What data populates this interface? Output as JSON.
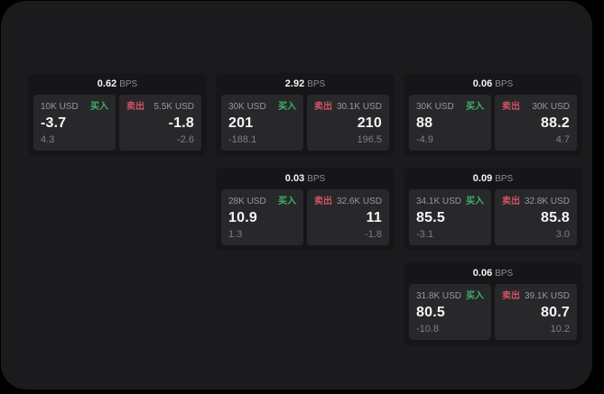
{
  "labels": {
    "bps_unit": "BPS",
    "buy": "买入",
    "sell": "卖出"
  },
  "colors": {
    "background": "#000000",
    "surface": "#1b1b1d",
    "card": "#161618",
    "panel": "#28282a",
    "value_text": "#f5f5f7",
    "muted_text": "#8e8e93",
    "buy_accent": "#41b269",
    "sell_accent": "#cf5466"
  },
  "cards": [
    {
      "bps": "0.62",
      "buy": {
        "size": "10K USD",
        "value": "-3.7",
        "sub": "4.3"
      },
      "sell": {
        "size": "5.5K USD",
        "value": "-1.8",
        "sub": "-2.6"
      }
    },
    {
      "bps": "2.92",
      "buy": {
        "size": "30K USD",
        "value": "201",
        "sub": "-188.1"
      },
      "sell": {
        "size": "30.1K USD",
        "value": "210",
        "sub": "196.5"
      }
    },
    {
      "bps": "0.06",
      "buy": {
        "size": "30K USD",
        "value": "88",
        "sub": "-4.9"
      },
      "sell": {
        "size": "30K USD",
        "value": "88.2",
        "sub": "4.7"
      }
    },
    {
      "bps": "0.03",
      "buy": {
        "size": "28K USD",
        "value": "10.9",
        "sub": "1.3"
      },
      "sell": {
        "size": "32.6K USD",
        "value": "11",
        "sub": "-1.8"
      }
    },
    {
      "bps": "0.09",
      "buy": {
        "size": "34.1K USD",
        "value": "85.5",
        "sub": "-3.1"
      },
      "sell": {
        "size": "32.8K USD",
        "value": "85.8",
        "sub": "3.0"
      }
    },
    {
      "bps": "0.06",
      "buy": {
        "size": "31.8K USD",
        "value": "80.5",
        "sub": "-10.8"
      },
      "sell": {
        "size": "39.1K USD",
        "value": "80.7",
        "sub": "10.2"
      }
    }
  ]
}
